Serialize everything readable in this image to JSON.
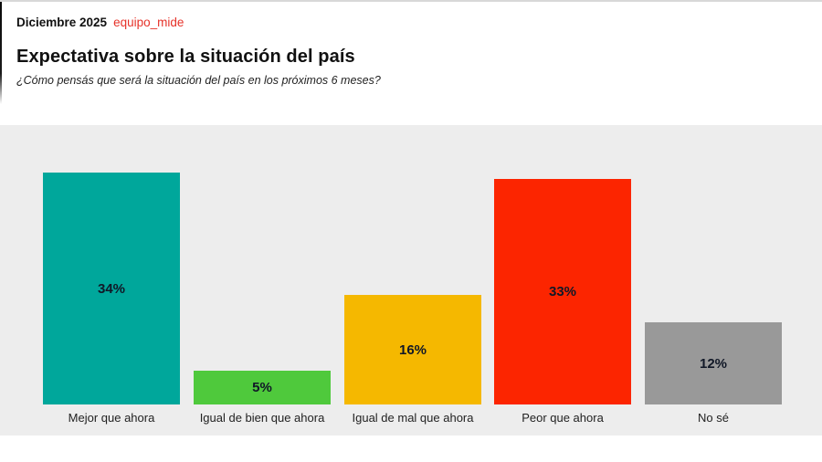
{
  "header": {
    "date": "Diciembre 2025",
    "brand": "equipo_mide",
    "brand_color": "#e63229",
    "title": "Expectativa sobre la situación del país",
    "subtitle": "¿Cómo pensás que será la situación del país en los próximos 6 meses?"
  },
  "chart_data": {
    "type": "bar",
    "title": "Expectativa sobre la situación del país",
    "subtitle": "¿Cómo pensás que será la situación del país en los próximos 6 meses?",
    "categories": [
      "Mejor que ahora",
      "Igual de bien que ahora",
      "Igual de mal que ahora",
      "Peor que ahora",
      "No sé"
    ],
    "values": [
      34,
      5,
      16,
      33,
      12
    ],
    "value_labels": [
      "34%",
      "5%",
      "16%",
      "33%",
      "12%"
    ],
    "bar_colors": [
      "#00a79b",
      "#4fc93c",
      "#f5b800",
      "#fc2500",
      "#999999"
    ],
    "xlabel": "",
    "ylabel": "",
    "ylim": [
      0,
      41
    ],
    "grid": false,
    "legend": false,
    "value_label_color": "#111827",
    "category_label_color": "#222222",
    "plot_background": "#ededed"
  }
}
